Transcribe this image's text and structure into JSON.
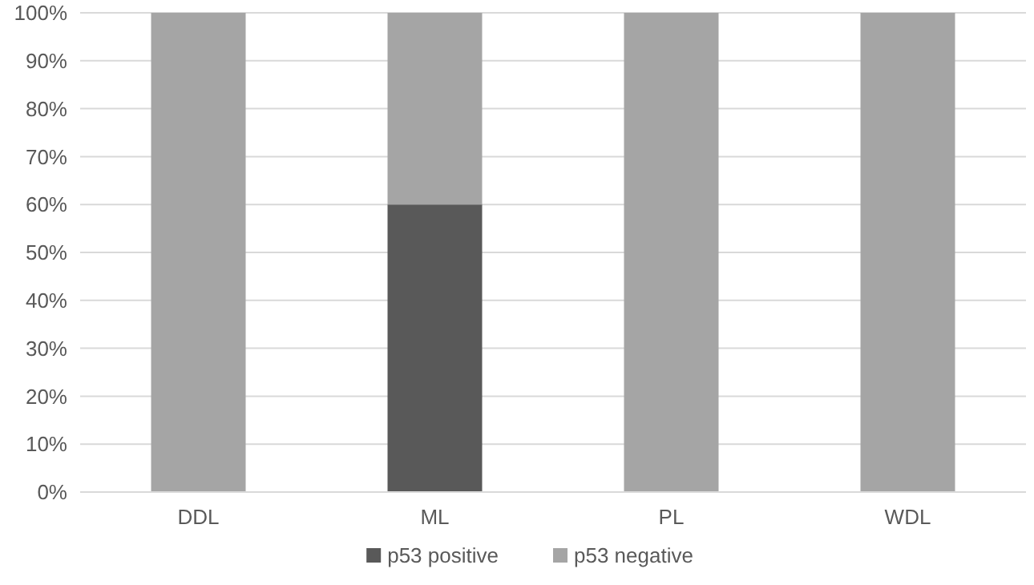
{
  "chart_data": {
    "type": "bar",
    "stacked": true,
    "categories": [
      "DDL",
      "ML",
      "PL",
      "WDL"
    ],
    "series": [
      {
        "name": "p53 positive",
        "color": "#595959",
        "values": [
          0,
          60,
          0,
          0
        ]
      },
      {
        "name": "p53 negative",
        "color": "#a5a5a5",
        "values": [
          100,
          40,
          100,
          100
        ]
      }
    ],
    "ylim": [
      0,
      100
    ],
    "yticks": [
      {
        "value": 0,
        "label": "0%"
      },
      {
        "value": 10,
        "label": "10%"
      },
      {
        "value": 20,
        "label": "20%"
      },
      {
        "value": 30,
        "label": "30%"
      },
      {
        "value": 40,
        "label": "40%"
      },
      {
        "value": 50,
        "label": "50%"
      },
      {
        "value": 60,
        "label": "60%"
      },
      {
        "value": 70,
        "label": "70%"
      },
      {
        "value": 80,
        "label": "80%"
      },
      {
        "value": 90,
        "label": "90%"
      },
      {
        "value": 100,
        "label": "100%"
      }
    ],
    "grid": "y",
    "legend": "bottom"
  }
}
